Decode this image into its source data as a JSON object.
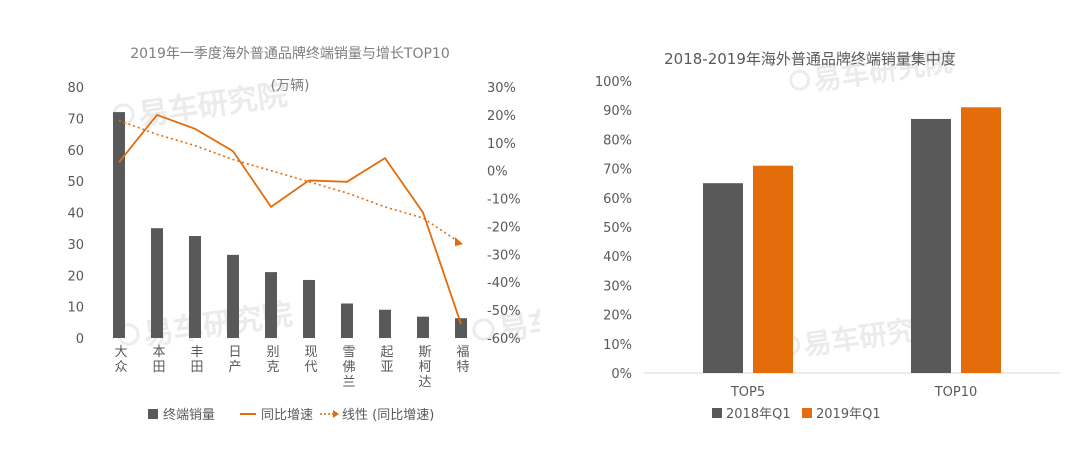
{
  "watermark_text": "易车研究院",
  "colors": {
    "gray": "#595959",
    "orange": "#e46c0a",
    "axis_text": "#595959",
    "grid": "#d9d9d9"
  },
  "chart_data": [
    {
      "type": "bar",
      "title": "2019年一季度海外普通品牌终端销量与增长TOP10",
      "subtitle": "(万辆)",
      "categories": [
        "大众",
        "本田",
        "丰田",
        "日产",
        "别克",
        "现代",
        "雪佛兰",
        "起亚",
        "斯柯达",
        "福特"
      ],
      "y_left_ticks": [
        "0",
        "10",
        "20",
        "30",
        "40",
        "50",
        "60",
        "70",
        "80"
      ],
      "y_right_ticks": [
        "-60%",
        "-50%",
        "-40%",
        "-30%",
        "-20%",
        "-10%",
        "0%",
        "10%",
        "20%",
        "30%"
      ],
      "ylim_left": [
        0,
        80
      ],
      "ylim_right": [
        -0.6,
        0.3
      ],
      "series": [
        {
          "name": "终端销量",
          "kind": "bar",
          "axis": "left",
          "values": [
            72,
            35,
            32.5,
            26.5,
            21,
            18.5,
            11,
            9,
            6.8,
            6.3
          ]
        },
        {
          "name": "同比增速",
          "kind": "line",
          "axis": "right",
          "values": [
            0.03,
            0.2,
            0.15,
            0.07,
            -0.13,
            -0.035,
            -0.04,
            0.045,
            -0.15,
            -0.55
          ]
        },
        {
          "name": "线性 (同比增速)",
          "kind": "trend",
          "axis": "right",
          "values": [
            0.18,
            0.13,
            0.09,
            0.04,
            0.0,
            -0.04,
            -0.08,
            -0.13,
            -0.17,
            -0.26
          ]
        }
      ],
      "legend_position": "bottom"
    },
    {
      "type": "bar",
      "title": "2018-2019年海外普通品牌终端销量集中度",
      "categories": [
        "TOP5",
        "TOP10"
      ],
      "y_ticks": [
        "0%",
        "10%",
        "20%",
        "30%",
        "40%",
        "50%",
        "60%",
        "70%",
        "80%",
        "90%",
        "100%"
      ],
      "ylim": [
        0,
        1.0
      ],
      "series": [
        {
          "name": "2018年Q1",
          "values": [
            0.65,
            0.87
          ]
        },
        {
          "name": "2019年Q1",
          "values": [
            0.71,
            0.91
          ]
        }
      ],
      "legend_position": "bottom"
    }
  ]
}
